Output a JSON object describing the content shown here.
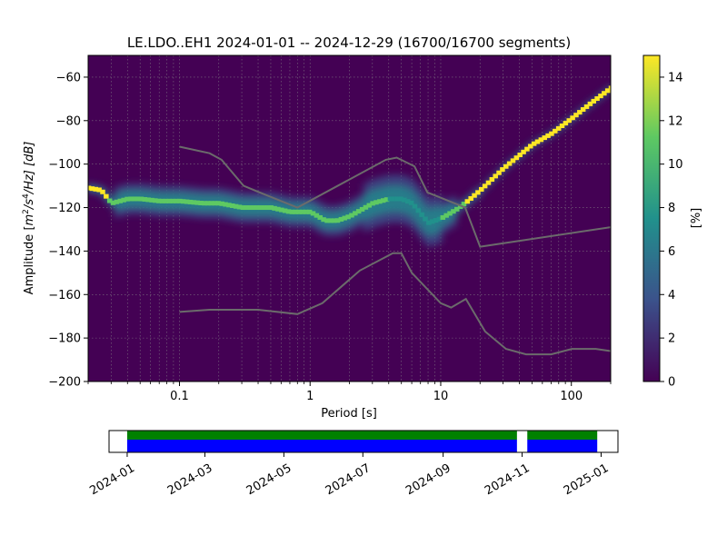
{
  "chart_data": [
    {
      "type": "heatmap",
      "title": "LE.LDO..EH1   2024-01-01 -- 2024-12-29  (16700/16700 segments)",
      "xlabel": "Period [s]",
      "ylabel_prefix": "Amplitude [",
      "ylabel_math": "m",
      "ylabel_sup1": "2",
      "ylabel_mid": "/s",
      "ylabel_sup2": "4",
      "ylabel_suffix": "/Hz] [dB]",
      "x_scale": "log",
      "xlim": [
        0.02,
        200
      ],
      "ylim": [
        -200,
        -50
      ],
      "x_ticks": [
        {
          "value": 0.1,
          "label": "0.1"
        },
        {
          "value": 1,
          "label": "1"
        },
        {
          "value": 10,
          "label": "10"
        },
        {
          "value": 100,
          "label": "100"
        }
      ],
      "y_ticks": [
        {
          "value": -60,
          "label": "−60"
        },
        {
          "value": -80,
          "label": "−80"
        },
        {
          "value": -100,
          "label": "−100"
        },
        {
          "value": -120,
          "label": "−120"
        },
        {
          "value": -140,
          "label": "−140"
        },
        {
          "value": -160,
          "label": "−160"
        },
        {
          "value": -180,
          "label": "−180"
        },
        {
          "value": -200,
          "label": "−200"
        }
      ],
      "grid": true,
      "colorbar": {
        "label": "[%]",
        "range": [
          0,
          15
        ],
        "ticks": [
          {
            "value": 0,
            "label": "0"
          },
          {
            "value": 2,
            "label": "2"
          },
          {
            "value": 4,
            "label": "4"
          },
          {
            "value": 6,
            "label": "6"
          },
          {
            "value": 8,
            "label": "8"
          },
          {
            "value": 10,
            "label": "10"
          },
          {
            "value": 12,
            "label": "12"
          },
          {
            "value": 14,
            "label": "14"
          }
        ]
      },
      "mode_curve": [
        [
          0.02,
          -111
        ],
        [
          0.025,
          -112
        ],
        [
          0.03,
          -118
        ],
        [
          0.04,
          -116
        ],
        [
          0.05,
          -116
        ],
        [
          0.07,
          -117
        ],
        [
          0.1,
          -117
        ],
        [
          0.15,
          -118
        ],
        [
          0.2,
          -118
        ],
        [
          0.3,
          -120
        ],
        [
          0.5,
          -120
        ],
        [
          0.7,
          -122
        ],
        [
          1.0,
          -122
        ],
        [
          1.3,
          -126
        ],
        [
          1.6,
          -126
        ],
        [
          2.0,
          -124
        ],
        [
          3.0,
          -118
        ],
        [
          4.0,
          -116
        ],
        [
          5.0,
          -116
        ],
        [
          6.0,
          -118
        ],
        [
          8.0,
          -127
        ],
        [
          10.0,
          -125
        ],
        [
          13.0,
          -121
        ],
        [
          16.0,
          -117
        ],
        [
          20.0,
          -112
        ],
        [
          30.0,
          -102
        ],
        [
          50.0,
          -91
        ],
        [
          70.0,
          -86
        ],
        [
          100.0,
          -79
        ],
        [
          140.0,
          -72
        ],
        [
          200.0,
          -65
        ]
      ],
      "nhnm": [
        [
          0.1,
          -92
        ],
        [
          0.17,
          -95
        ],
        [
          0.21,
          -98
        ],
        [
          0.31,
          -110
        ],
        [
          0.41,
          -113
        ],
        [
          0.8,
          -120
        ],
        [
          3.8,
          -98
        ],
        [
          4.6,
          -97
        ],
        [
          6.3,
          -101
        ],
        [
          7.9,
          -113
        ],
        [
          15.4,
          -120
        ],
        [
          20,
          -138
        ],
        [
          200,
          -129
        ]
      ],
      "nlnm": [
        [
          0.1,
          -168
        ],
        [
          0.17,
          -167
        ],
        [
          0.4,
          -167
        ],
        [
          0.8,
          -169
        ],
        [
          1.24,
          -164
        ],
        [
          2.4,
          -149
        ],
        [
          4.3,
          -141
        ],
        [
          5.0,
          -141
        ],
        [
          6.0,
          -150
        ],
        [
          10.0,
          -164
        ],
        [
          12.0,
          -166
        ],
        [
          15.6,
          -162
        ],
        [
          21.9,
          -177
        ],
        [
          31.6,
          -185
        ],
        [
          45.0,
          -187.5
        ],
        [
          70.0,
          -187.5
        ],
        [
          101.0,
          -185
        ],
        [
          154.0,
          -185
        ],
        [
          200,
          -186
        ]
      ],
      "color_scale": [
        "#440154",
        "#3b528b",
        "#21918c",
        "#5ec962",
        "#fde725"
      ],
      "nm_color": "#6b6b6b"
    },
    {
      "type": "bar",
      "timeline_ticks": [
        {
          "value": "2024-01-01",
          "label": "2024-01"
        },
        {
          "value": "2024-03-01",
          "label": "2024-03"
        },
        {
          "value": "2024-05-01",
          "label": "2024-05"
        },
        {
          "value": "2024-07-01",
          "label": "2024-07"
        },
        {
          "value": "2024-09-01",
          "label": "2024-09"
        },
        {
          "value": "2024-11-01",
          "label": "2024-11"
        },
        {
          "value": "2025-01-01",
          "label": "2025-01"
        }
      ],
      "xlim": [
        "2023-12-18",
        "2025-01-14"
      ],
      "coverage": [
        {
          "start": "2024-01-01",
          "end": "2024-10-28"
        },
        {
          "start": "2024-11-05",
          "end": "2024-12-29"
        }
      ],
      "data_color": "#0000ff",
      "processed_color": "#008000"
    }
  ]
}
